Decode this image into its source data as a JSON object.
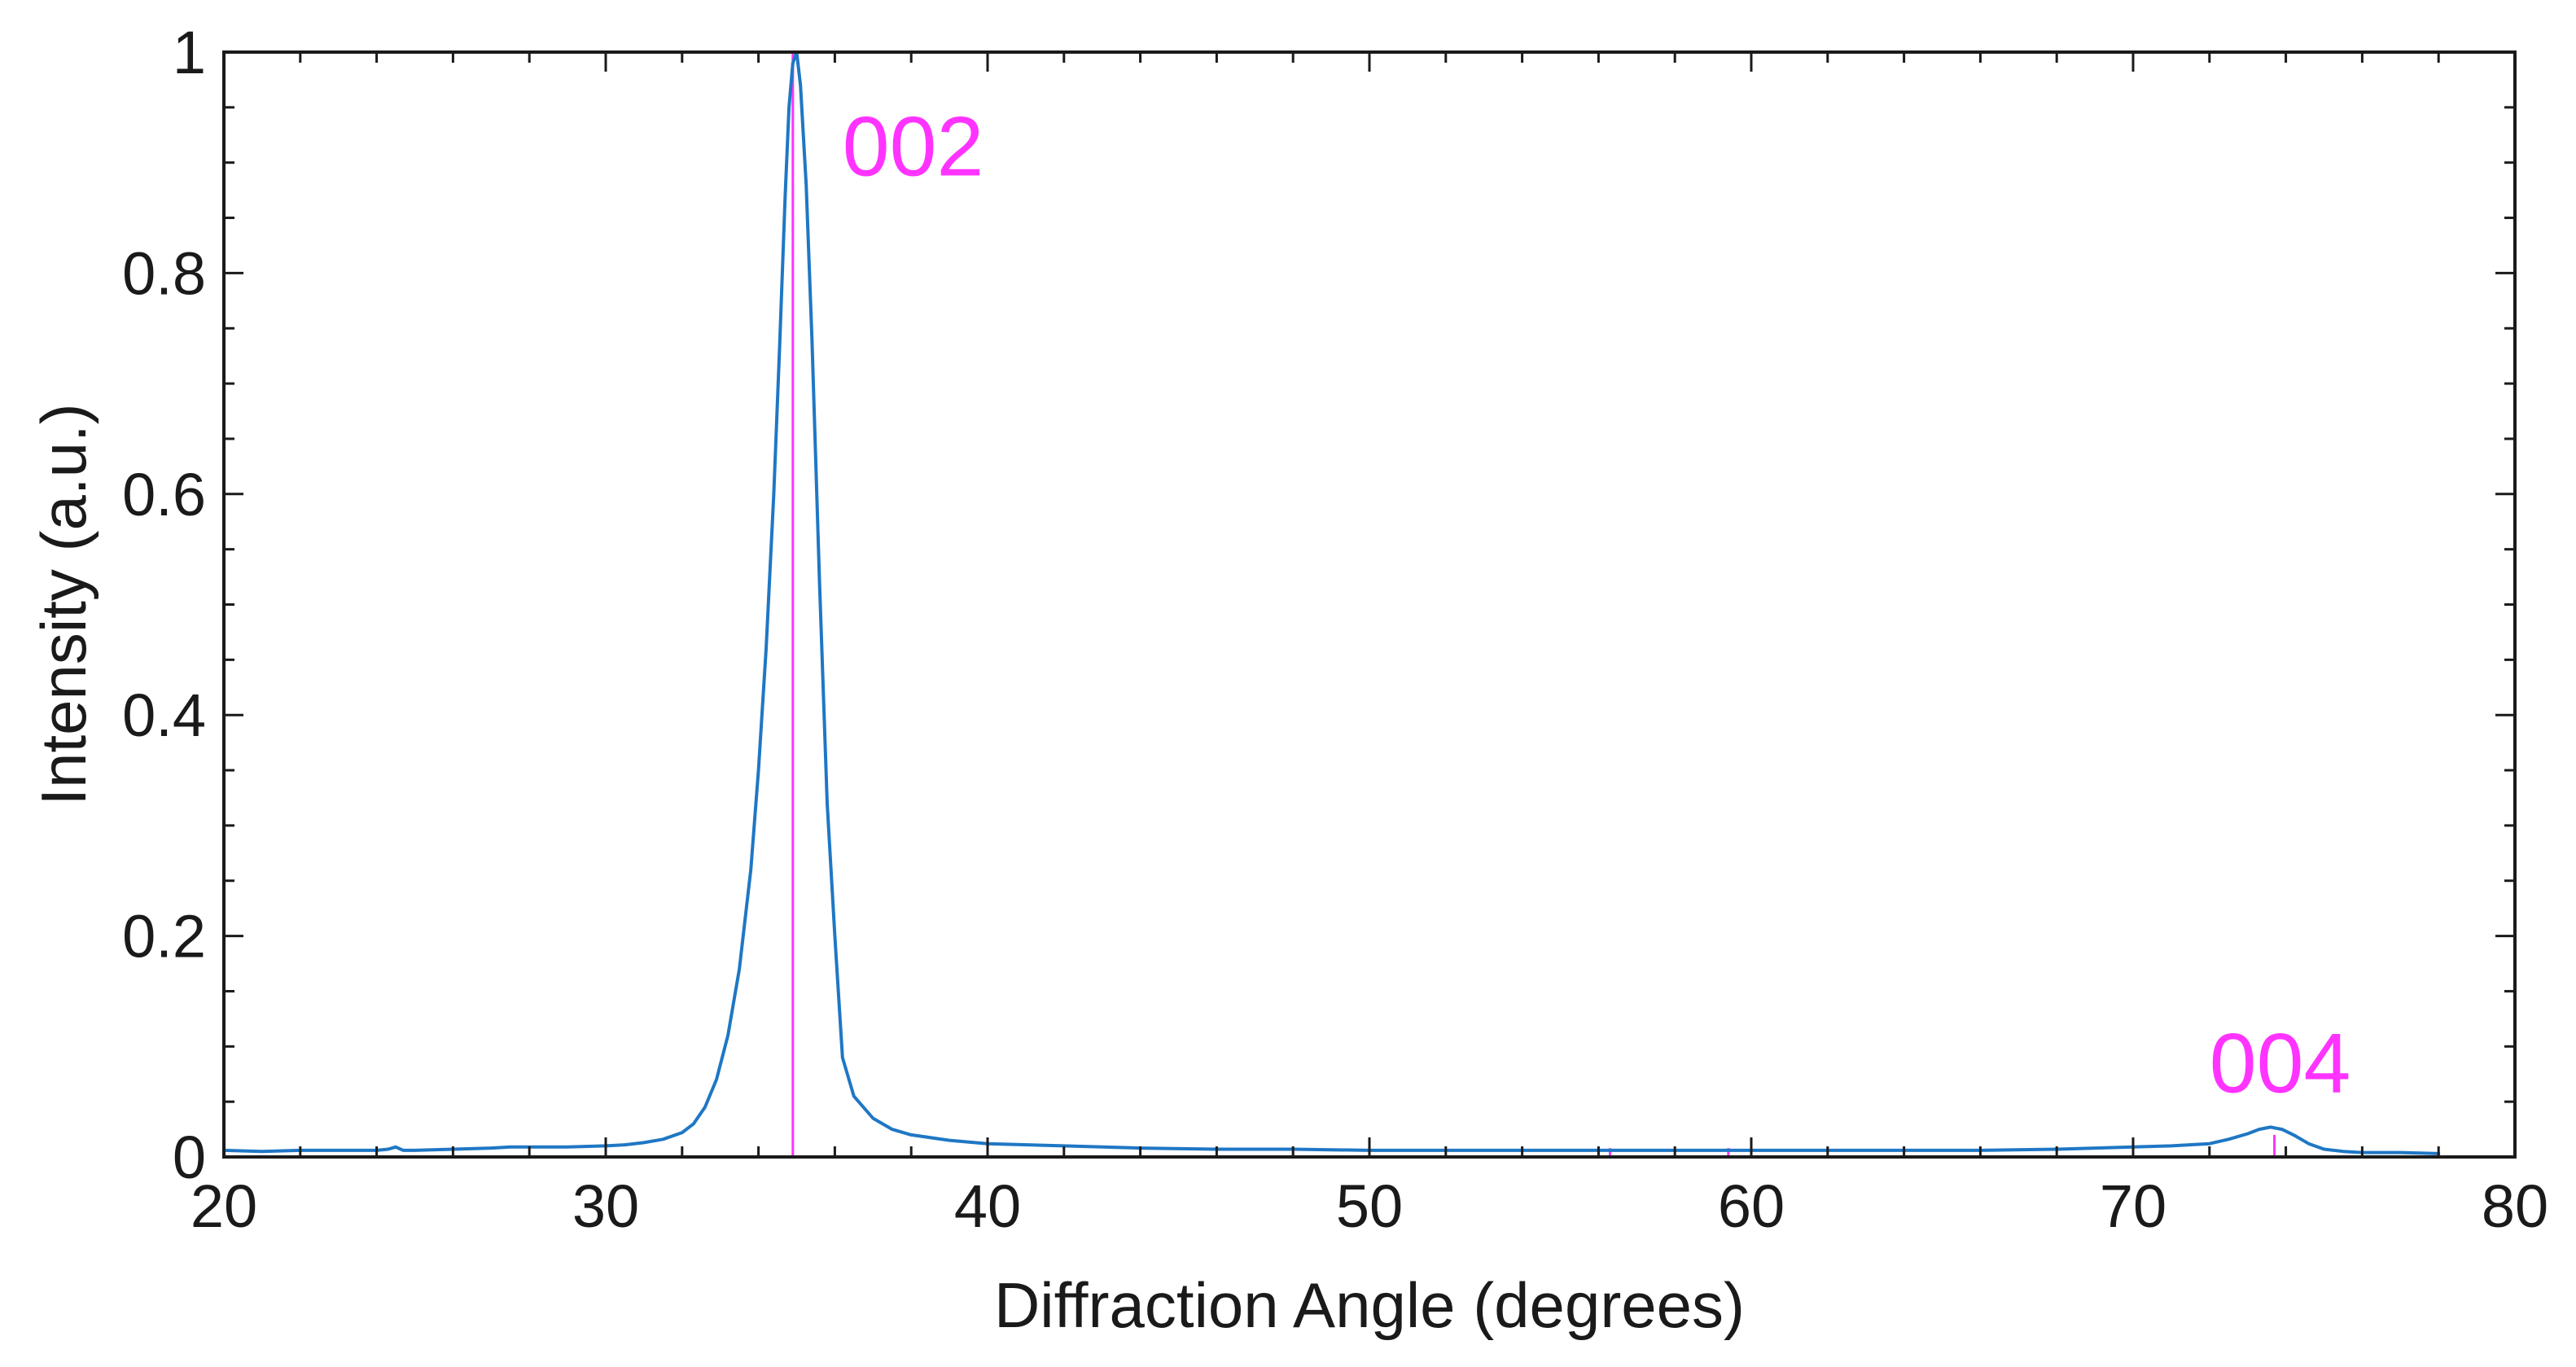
{
  "chart_data": {
    "type": "line",
    "title": "",
    "xlabel": "Diffraction Angle (degrees)",
    "ylabel": "Intensity (a.u.)",
    "xlim": [
      20,
      80
    ],
    "ylim": [
      0,
      1
    ],
    "x_ticks": [
      20,
      30,
      40,
      50,
      60,
      70,
      80
    ],
    "y_ticks": [
      0,
      0.2,
      0.4,
      0.6,
      0.8,
      1
    ],
    "x_tick_labels": [
      "20",
      "30",
      "40",
      "50",
      "60",
      "70",
      "80"
    ],
    "y_tick_labels": [
      "0",
      "0.2",
      "0.4",
      "0.6",
      "0.8",
      "1"
    ],
    "x_minor_step": 2,
    "y_minor_step": 0.05,
    "grid": false,
    "box": true,
    "colors": {
      "series": "#1f77c4",
      "reference": "#ff33ff",
      "axis": "#1a1a1a"
    },
    "series": [
      {
        "x": [
          20.0,
          21.0,
          22.0,
          23.0,
          24.0,
          24.3,
          24.5,
          24.7,
          25.0,
          26.0,
          27.0,
          27.5,
          28.0,
          29.0,
          30.0,
          30.5,
          31.0,
          31.5,
          32.0,
          32.3,
          32.6,
          32.9,
          33.2,
          33.5,
          33.8,
          34.0,
          34.2,
          34.4,
          34.55,
          34.7,
          34.8,
          34.9,
          35.0,
          35.1,
          35.25,
          35.4,
          35.6,
          35.8,
          36.0,
          36.2,
          36.5,
          37.0,
          37.5,
          38.0,
          39.0,
          40.0,
          42.0,
          44.0,
          46.0,
          48.0,
          50.0,
          52.0,
          54.0,
          56.0,
          58.0,
          60.0,
          62.0,
          64.0,
          66.0,
          68.0,
          70.0,
          71.0,
          72.0,
          72.5,
          73.0,
          73.3,
          73.6,
          73.9,
          74.2,
          74.6,
          75.0,
          75.5,
          76.0,
          77.0,
          78.0
        ],
        "y": [
          0.006,
          0.005,
          0.006,
          0.006,
          0.006,
          0.007,
          0.009,
          0.006,
          0.006,
          0.007,
          0.008,
          0.009,
          0.009,
          0.009,
          0.01,
          0.011,
          0.013,
          0.016,
          0.022,
          0.03,
          0.045,
          0.07,
          0.11,
          0.17,
          0.26,
          0.35,
          0.46,
          0.6,
          0.73,
          0.87,
          0.95,
          0.99,
          1.0,
          0.97,
          0.88,
          0.74,
          0.52,
          0.32,
          0.2,
          0.09,
          0.055,
          0.035,
          0.025,
          0.02,
          0.015,
          0.012,
          0.01,
          0.008,
          0.007,
          0.007,
          0.006,
          0.006,
          0.006,
          0.006,
          0.006,
          0.006,
          0.006,
          0.006,
          0.006,
          0.007,
          0.009,
          0.01,
          0.012,
          0.016,
          0.021,
          0.025,
          0.027,
          0.025,
          0.02,
          0.012,
          0.007,
          0.005,
          0.004,
          0.004,
          0.003
        ]
      }
    ],
    "reference_lines": [
      {
        "x": 34.9,
        "y": 1.0
      },
      {
        "x": 48.0,
        "y": 0.008
      },
      {
        "x": 56.3,
        "y": 0.008
      },
      {
        "x": 59.4,
        "y": 0.008
      },
      {
        "x": 73.7,
        "y": 0.02
      }
    ],
    "annotations": [
      {
        "text": "002",
        "x": 36.2,
        "y": 0.915
      },
      {
        "text": "004",
        "x": 72.0,
        "y": 0.085
      }
    ]
  }
}
